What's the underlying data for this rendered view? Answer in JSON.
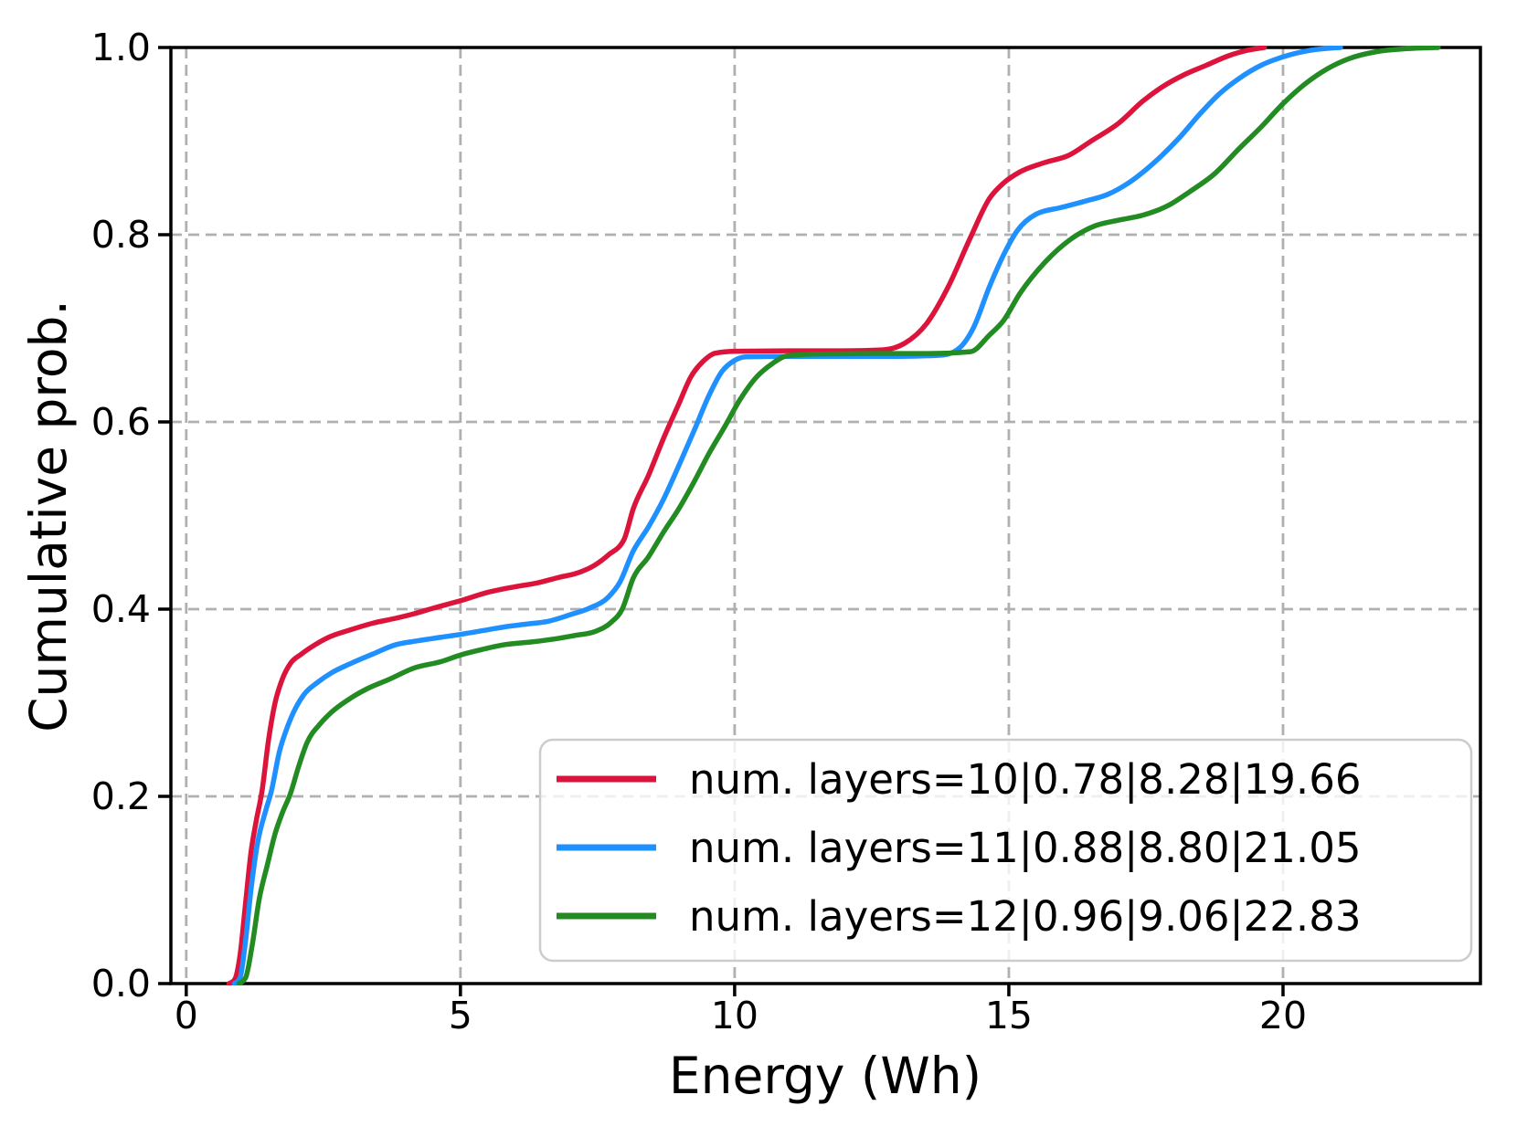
{
  "figure": {
    "background": "#ffffff"
  },
  "chart_data": {
    "type": "line",
    "subtype": "smoothed-ecdf",
    "title": "",
    "xlabel": "Energy (Wh)",
    "ylabel": "Cumulative prob.",
    "xlim": [
      -0.28,
      23.6
    ],
    "ylim": [
      0.0,
      1.0
    ],
    "xticks": [
      0,
      5,
      10,
      15,
      20
    ],
    "xtick_labels": [
      "0",
      "5",
      "10",
      "15",
      "20"
    ],
    "yticks": [
      0.0,
      0.2,
      0.4,
      0.6,
      0.8,
      1.0
    ],
    "ytick_labels": [
      "0.0",
      "0.2",
      "0.4",
      "0.6",
      "0.8",
      "1.0"
    ],
    "grid": {
      "on": true,
      "style": "dashed",
      "color": "#b0b0b0",
      "axes": "both"
    },
    "legend": {
      "position": "lower right",
      "frame": true,
      "frame_color": "#cccccc",
      "frame_fill": "rgba(255,255,255,0.8)"
    },
    "series": [
      {
        "name": "num. layers=10|0.78|8.28|19.66",
        "color": "#DC143C",
        "stats": {
          "num_layers": 10,
          "min": 0.78,
          "mean": 8.28,
          "max": 19.66
        },
        "points": [
          [
            0.78,
            0
          ],
          [
            0.88,
            0.004
          ],
          [
            0.98,
            0.03
          ],
          [
            1.08,
            0.085
          ],
          [
            1.18,
            0.14
          ],
          [
            1.28,
            0.175
          ],
          [
            1.38,
            0.205
          ],
          [
            1.5,
            0.26
          ],
          [
            1.62,
            0.3
          ],
          [
            1.75,
            0.325
          ],
          [
            1.9,
            0.342
          ],
          [
            2.1,
            0.352
          ],
          [
            2.35,
            0.362
          ],
          [
            2.6,
            0.37
          ],
          [
            3.0,
            0.378
          ],
          [
            3.4,
            0.385
          ],
          [
            3.8,
            0.39
          ],
          [
            4.15,
            0.395
          ],
          [
            4.5,
            0.401
          ],
          [
            5.0,
            0.409
          ],
          [
            5.5,
            0.418
          ],
          [
            6.0,
            0.424
          ],
          [
            6.4,
            0.428
          ],
          [
            6.8,
            0.434
          ],
          [
            7.1,
            0.438
          ],
          [
            7.45,
            0.447
          ],
          [
            7.7,
            0.458
          ],
          [
            7.98,
            0.474
          ],
          [
            8.15,
            0.507
          ],
          [
            8.43,
            0.543
          ],
          [
            8.7,
            0.582
          ],
          [
            8.98,
            0.619
          ],
          [
            9.2,
            0.648
          ],
          [
            9.43,
            0.665
          ],
          [
            9.65,
            0.6735
          ],
          [
            10.0,
            0.6755
          ],
          [
            11.0,
            0.676
          ],
          [
            12.0,
            0.676
          ],
          [
            12.7,
            0.677
          ],
          [
            13.1,
            0.684
          ],
          [
            13.5,
            0.705
          ],
          [
            13.9,
            0.745
          ],
          [
            14.3,
            0.797
          ],
          [
            14.65,
            0.839
          ],
          [
            14.9,
            0.855
          ],
          [
            15.2,
            0.867
          ],
          [
            15.65,
            0.877
          ],
          [
            16.1,
            0.885
          ],
          [
            16.5,
            0.9
          ],
          [
            17.0,
            0.919
          ],
          [
            17.45,
            0.943
          ],
          [
            17.8,
            0.958
          ],
          [
            18.2,
            0.971
          ],
          [
            18.6,
            0.981
          ],
          [
            19.0,
            0.991
          ],
          [
            19.35,
            0.997
          ],
          [
            19.66,
            1.0
          ]
        ]
      },
      {
        "name": "num. layers=11|0.88|8.80|21.05",
        "color": "#1E90FF",
        "stats": {
          "num_layers": 11,
          "min": 0.88,
          "mean": 8.8,
          "max": 21.05
        },
        "points": [
          [
            0.88,
            0
          ],
          [
            0.98,
            0.006
          ],
          [
            1.08,
            0.045
          ],
          [
            1.18,
            0.1
          ],
          [
            1.3,
            0.15
          ],
          [
            1.45,
            0.185
          ],
          [
            1.55,
            0.205
          ],
          [
            1.7,
            0.248
          ],
          [
            1.85,
            0.275
          ],
          [
            2.0,
            0.295
          ],
          [
            2.15,
            0.309
          ],
          [
            2.4,
            0.322
          ],
          [
            2.65,
            0.332
          ],
          [
            3.0,
            0.342
          ],
          [
            3.4,
            0.352
          ],
          [
            3.82,
            0.362
          ],
          [
            4.2,
            0.366
          ],
          [
            4.65,
            0.37
          ],
          [
            5.0,
            0.373
          ],
          [
            5.4,
            0.377
          ],
          [
            5.8,
            0.381
          ],
          [
            6.2,
            0.384
          ],
          [
            6.6,
            0.387
          ],
          [
            7.0,
            0.394
          ],
          [
            7.35,
            0.401
          ],
          [
            7.7,
            0.413
          ],
          [
            7.9,
            0.428
          ],
          [
            8.15,
            0.462
          ],
          [
            8.43,
            0.488
          ],
          [
            8.7,
            0.517
          ],
          [
            8.98,
            0.553
          ],
          [
            9.27,
            0.592
          ],
          [
            9.53,
            0.628
          ],
          [
            9.77,
            0.654
          ],
          [
            9.98,
            0.665
          ],
          [
            10.2,
            0.6695
          ],
          [
            11.0,
            0.67
          ],
          [
            12.0,
            0.67
          ],
          [
            13.0,
            0.67
          ],
          [
            13.8,
            0.6715
          ],
          [
            14.1,
            0.679
          ],
          [
            14.35,
            0.7
          ],
          [
            14.65,
            0.745
          ],
          [
            14.9,
            0.778
          ],
          [
            15.15,
            0.804
          ],
          [
            15.5,
            0.822
          ],
          [
            15.95,
            0.829
          ],
          [
            16.4,
            0.836
          ],
          [
            16.8,
            0.843
          ],
          [
            17.2,
            0.856
          ],
          [
            17.65,
            0.877
          ],
          [
            18.1,
            0.903
          ],
          [
            18.5,
            0.93
          ],
          [
            18.85,
            0.951
          ],
          [
            19.2,
            0.967
          ],
          [
            19.6,
            0.981
          ],
          [
            20.0,
            0.99
          ],
          [
            20.5,
            0.997
          ],
          [
            21.05,
            1.0
          ]
        ]
      },
      {
        "name": "num. layers=12|0.96|9.06|22.83",
        "color": "#228B22",
        "stats": {
          "num_layers": 12,
          "min": 0.96,
          "mean": 9.06,
          "max": 22.83
        },
        "points": [
          [
            0.96,
            0
          ],
          [
            1.08,
            0.006
          ],
          [
            1.2,
            0.04
          ],
          [
            1.33,
            0.09
          ],
          [
            1.48,
            0.127
          ],
          [
            1.62,
            0.16
          ],
          [
            1.75,
            0.182
          ],
          [
            1.9,
            0.203
          ],
          [
            2.05,
            0.232
          ],
          [
            2.2,
            0.257
          ],
          [
            2.45,
            0.278
          ],
          [
            2.65,
            0.29
          ],
          [
            3.0,
            0.305
          ],
          [
            3.3,
            0.315
          ],
          [
            3.7,
            0.325
          ],
          [
            4.15,
            0.337
          ],
          [
            4.65,
            0.344
          ],
          [
            5.0,
            0.351
          ],
          [
            5.4,
            0.357
          ],
          [
            5.8,
            0.362
          ],
          [
            6.3,
            0.365
          ],
          [
            6.7,
            0.368
          ],
          [
            7.1,
            0.372
          ],
          [
            7.45,
            0.376
          ],
          [
            7.75,
            0.386
          ],
          [
            7.95,
            0.4
          ],
          [
            8.15,
            0.433
          ],
          [
            8.43,
            0.456
          ],
          [
            8.7,
            0.482
          ],
          [
            8.98,
            0.507
          ],
          [
            9.27,
            0.537
          ],
          [
            9.53,
            0.566
          ],
          [
            9.82,
            0.595
          ],
          [
            10.1,
            0.624
          ],
          [
            10.4,
            0.648
          ],
          [
            10.68,
            0.662
          ],
          [
            10.95,
            0.6705
          ],
          [
            11.5,
            0.6725
          ],
          [
            12.5,
            0.673
          ],
          [
            13.5,
            0.673
          ],
          [
            14.3,
            0.675
          ],
          [
            14.65,
            0.693
          ],
          [
            14.9,
            0.708
          ],
          [
            15.2,
            0.737
          ],
          [
            15.65,
            0.77
          ],
          [
            16.1,
            0.794
          ],
          [
            16.55,
            0.809
          ],
          [
            17.0,
            0.8155
          ],
          [
            17.45,
            0.821
          ],
          [
            17.9,
            0.831
          ],
          [
            18.3,
            0.846
          ],
          [
            18.75,
            0.865
          ],
          [
            19.2,
            0.892
          ],
          [
            19.6,
            0.915
          ],
          [
            20.0,
            0.94
          ],
          [
            20.4,
            0.961
          ],
          [
            20.8,
            0.977
          ],
          [
            21.2,
            0.988
          ],
          [
            21.7,
            0.9955
          ],
          [
            22.2,
            0.9985
          ],
          [
            22.83,
            1.0
          ]
        ]
      }
    ]
  }
}
